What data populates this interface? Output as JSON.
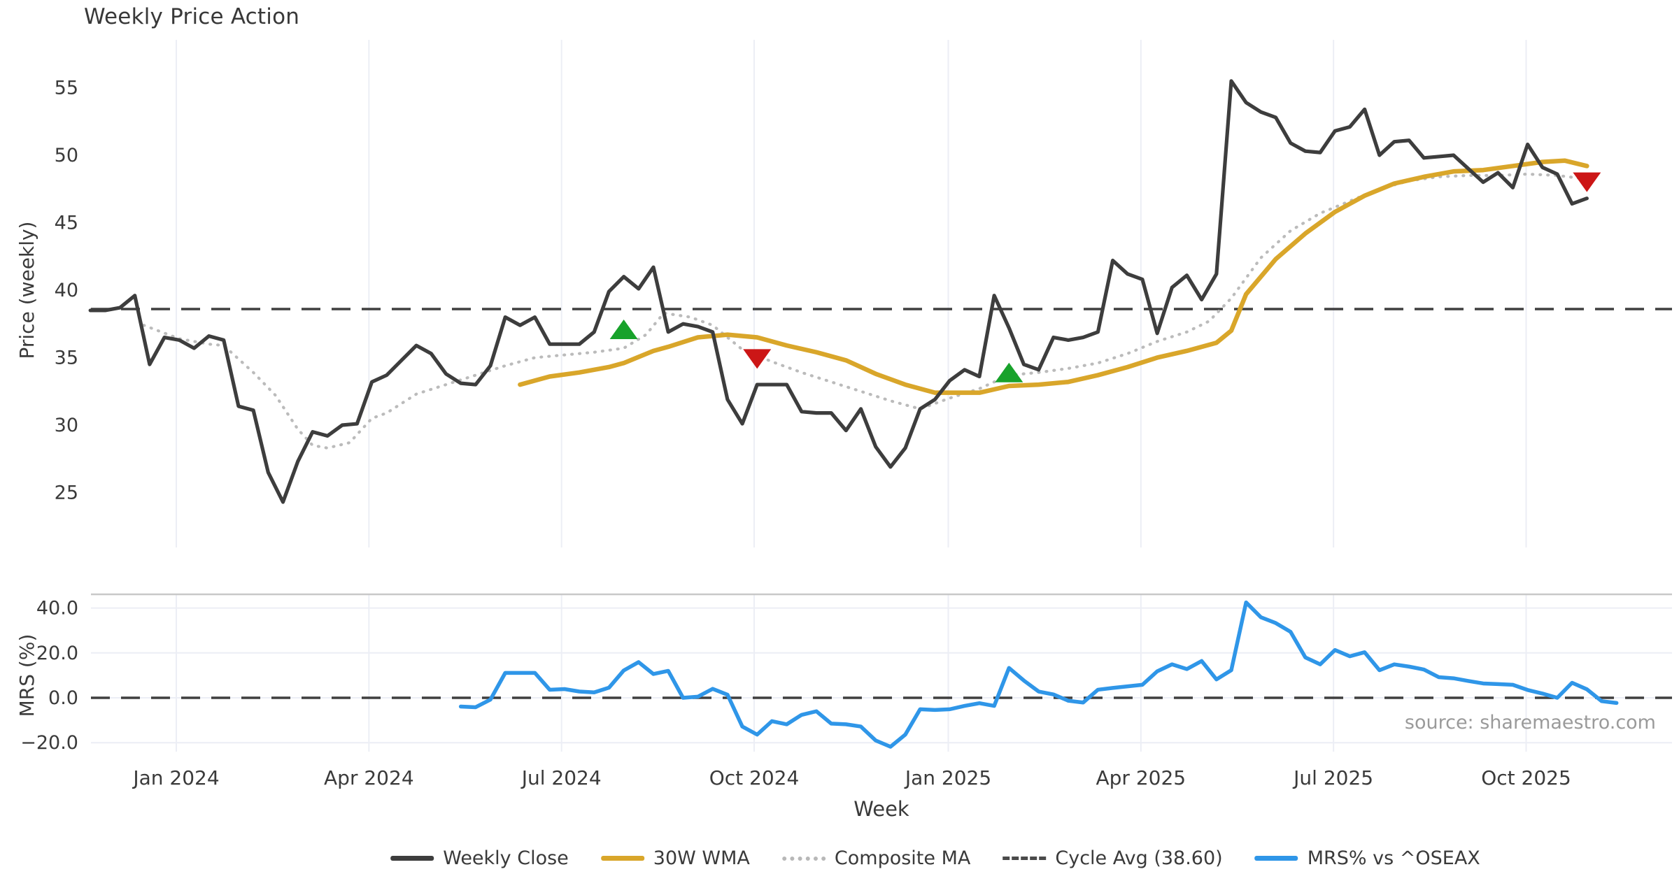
{
  "title": "Weekly Price Action",
  "source": "source: sharemaestro.com",
  "price_axis": {
    "label": "Price (weekly)",
    "ticks": [
      25,
      30,
      35,
      40,
      45,
      50,
      55
    ]
  },
  "mrs_axis": {
    "label": "MRS (%)",
    "ticks": [
      {
        "value": 40,
        "label": "40.0"
      },
      {
        "value": 20,
        "label": "20.0"
      },
      {
        "value": 0,
        "label": "0.0"
      },
      {
        "value": -20,
        "label": "−20.0"
      }
    ]
  },
  "x_axis": {
    "label": "Week",
    "ticks": [
      {
        "week": 5.8,
        "label": "Jan 2024"
      },
      {
        "week": 18.8,
        "label": "Apr 2024"
      },
      {
        "week": 31.8,
        "label": "Jul 2024"
      },
      {
        "week": 44.8,
        "label": "Oct 2024"
      },
      {
        "week": 57.9,
        "label": "Jan 2025"
      },
      {
        "week": 70.9,
        "label": "Apr 2025"
      },
      {
        "week": 83.9,
        "label": "Jul 2025"
      },
      {
        "week": 96.9,
        "label": "Oct 2025"
      }
    ]
  },
  "legend": [
    {
      "label": "Weekly Close",
      "style": "solid",
      "color": "#3d3d3d"
    },
    {
      "label": "30W WMA",
      "style": "solid",
      "color": "#d9a62a"
    },
    {
      "label": "Composite MA",
      "style": "dotted",
      "color": "#b8b8b8"
    },
    {
      "label": "Cycle Avg (38.60)",
      "style": "dashed",
      "color": "#4a4a4a"
    },
    {
      "label": "MRS% vs ^OSEAX",
      "style": "solid",
      "color": "#2f96e8"
    }
  ],
  "colors": {
    "weekly_close": "#3d3d3d",
    "wma": "#d9a62a",
    "composite": "#bbbbbb",
    "cycle_avg": "#3f3f3f",
    "mrs": "#2f96e8",
    "signal_up": "#18a22b",
    "signal_down": "#cc1616",
    "grid": "#eceef5",
    "panel_spine": "#c8c8c8"
  },
  "chart_data": [
    {
      "type": "line",
      "panel": "price",
      "ylabel": "Price (weekly)",
      "ylim": [
        20.8,
        58.6
      ],
      "grid": "vertical-only",
      "cycle_avg": 38.6,
      "series": [
        {
          "name": "Weekly Close",
          "start_week": 0,
          "values": [
            38.5,
            38.5,
            38.7,
            39.6,
            34.5,
            36.5,
            36.3,
            35.7,
            36.6,
            36.3,
            31.4,
            31.1,
            26.5,
            24.3,
            27.3,
            29.5,
            29.2,
            30.0,
            30.1,
            33.2,
            33.7,
            34.8,
            35.9,
            35.3,
            33.8,
            33.1,
            33.0,
            34.4,
            38.0,
            37.4,
            38.0,
            36.0,
            36.0,
            36.0,
            36.9,
            39.9,
            41.0,
            40.1,
            41.7,
            36.9,
            37.5,
            37.3,
            36.9,
            31.9,
            30.1,
            33.0,
            33.0,
            33.0,
            31.0,
            30.9,
            30.9,
            29.6,
            31.2,
            28.4,
            26.9,
            28.3,
            31.2,
            31.9,
            33.3,
            34.1,
            33.6,
            39.6,
            37.2,
            34.5,
            34.1,
            36.5,
            36.3,
            36.5,
            36.9,
            42.2,
            41.2,
            40.8,
            36.8,
            40.2,
            41.1,
            39.3,
            41.2,
            55.5,
            53.9,
            53.2,
            52.8,
            50.9,
            50.3,
            50.2,
            51.8,
            52.1,
            53.4,
            50.0,
            51.0,
            51.1,
            49.8,
            49.9,
            50.0,
            49.0,
            48.0,
            48.7,
            47.6,
            50.8,
            49.1,
            48.6,
            46.4,
            46.8
          ]
        },
        {
          "name": "30W WMA",
          "points": [
            [
              29,
              33.0
            ],
            [
              31,
              33.6
            ],
            [
              33,
              33.9
            ],
            [
              35,
              34.3
            ],
            [
              36,
              34.6
            ],
            [
              38,
              35.5
            ],
            [
              39,
              35.8
            ],
            [
              41,
              36.5
            ],
            [
              43,
              36.7
            ],
            [
              45,
              36.5
            ],
            [
              47,
              35.9
            ],
            [
              49,
              35.4
            ],
            [
              51,
              34.8
            ],
            [
              53,
              33.8
            ],
            [
              55,
              33.0
            ],
            [
              57,
              32.4
            ],
            [
              60,
              32.4
            ],
            [
              62,
              32.9
            ],
            [
              64,
              33.0
            ],
            [
              66,
              33.2
            ],
            [
              68,
              33.7
            ],
            [
              70,
              34.3
            ],
            [
              72,
              35.0
            ],
            [
              74,
              35.5
            ],
            [
              76,
              36.1
            ],
            [
              77,
              37.0
            ],
            [
              78,
              39.7
            ],
            [
              80,
              42.3
            ],
            [
              82,
              44.2
            ],
            [
              84,
              45.8
            ],
            [
              86,
              47.0
            ],
            [
              88,
              47.9
            ],
            [
              90,
              48.4
            ],
            [
              92,
              48.8
            ],
            [
              94,
              48.9
            ],
            [
              96,
              49.2
            ],
            [
              98,
              49.5
            ],
            [
              99.5,
              49.6
            ],
            [
              101,
              49.2
            ]
          ]
        },
        {
          "name": "Composite MA",
          "points": [
            [
              3.6,
              37.4
            ],
            [
              6,
              36.4
            ],
            [
              8,
              36.0
            ],
            [
              9,
              35.9
            ],
            [
              11,
              33.9
            ],
            [
              12.5,
              32.2
            ],
            [
              14,
              29.7
            ],
            [
              15,
              28.5
            ],
            [
              16,
              28.3
            ],
            [
              17.5,
              28.7
            ],
            [
              19,
              30.5
            ],
            [
              20,
              30.9
            ],
            [
              22,
              32.3
            ],
            [
              24,
              33.0
            ],
            [
              26,
              33.7
            ],
            [
              28,
              34.4
            ],
            [
              30,
              35.0
            ],
            [
              32,
              35.2
            ],
            [
              34,
              35.4
            ],
            [
              36,
              35.7
            ],
            [
              37.5,
              36.7
            ],
            [
              38.7,
              38.3
            ],
            [
              40.5,
              38.0
            ],
            [
              42,
              37.4
            ],
            [
              44,
              35.6
            ],
            [
              46,
              34.7
            ],
            [
              48,
              33.9
            ],
            [
              50,
              33.2
            ],
            [
              52,
              32.5
            ],
            [
              54,
              31.8
            ],
            [
              56,
              31.2
            ],
            [
              58,
              32.0
            ],
            [
              60,
              32.7
            ],
            [
              62,
              33.7
            ],
            [
              64,
              33.9
            ],
            [
              66,
              34.2
            ],
            [
              68,
              34.6
            ],
            [
              70,
              35.3
            ],
            [
              72,
              36.2
            ],
            [
              74,
              36.9
            ],
            [
              75.5,
              37.7
            ],
            [
              77,
              39.4
            ],
            [
              79,
              42.4
            ],
            [
              81,
              44.4
            ],
            [
              83,
              45.7
            ],
            [
              85,
              46.6
            ],
            [
              87,
              47.5
            ],
            [
              89,
              48.1
            ],
            [
              91,
              48.4
            ],
            [
              93,
              48.5
            ],
            [
              95,
              48.5
            ],
            [
              97,
              48.6
            ],
            [
              99,
              48.5
            ],
            [
              100.5,
              48.3
            ]
          ]
        }
      ],
      "signals": [
        {
          "week": 36,
          "value": 37.1,
          "direction": "up"
        },
        {
          "week": 45,
          "value": 34.9,
          "direction": "down"
        },
        {
          "week": 62,
          "value": 33.9,
          "direction": "up"
        },
        {
          "week": 101,
          "value": 48.0,
          "direction": "down"
        }
      ]
    },
    {
      "type": "line",
      "panel": "mrs",
      "ylabel": "MRS (%)",
      "ylim": [
        -27,
        46
      ],
      "zero_line": 0,
      "series": [
        {
          "name": "MRS% vs ^OSEAX",
          "start_week": 25,
          "values": [
            -3.9,
            -4.2,
            -0.8,
            11.1,
            11.1,
            11.1,
            3.6,
            3.9,
            2.8,
            2.4,
            4.5,
            12.2,
            15.9,
            10.6,
            12.0,
            0.0,
            0.5,
            4.0,
            1.4,
            -12.8,
            -16.4,
            -10.4,
            -11.8,
            -7.6,
            -6.0,
            -11.5,
            -11.8,
            -12.8,
            -19.0,
            -21.8,
            -16.4,
            -5.1,
            -5.4,
            -5.1,
            -3.6,
            -2.4,
            -3.6,
            13.3,
            7.7,
            2.8,
            1.5,
            -1.3,
            -2.1,
            3.6,
            4.4,
            5.1,
            5.8,
            11.8,
            14.9,
            12.8,
            16.4,
            8.2,
            12.3,
            42.5,
            35.9,
            33.3,
            29.4,
            18.0,
            14.9,
            21.3,
            18.5,
            20.3,
            12.3,
            14.9,
            13.9,
            12.6,
            9.2,
            8.7,
            7.5,
            6.4,
            6.1,
            5.8,
            3.5,
            1.9,
            0.0,
            6.7,
            3.8,
            -1.5,
            -2.3
          ]
        }
      ]
    }
  ]
}
